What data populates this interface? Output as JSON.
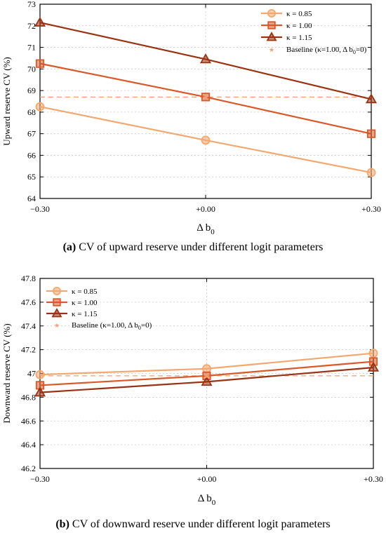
{
  "colors": {
    "k085": "#f2a86f",
    "k100": "#d9592a",
    "k115": "#9a3214",
    "baseline": "#f2a070",
    "grid": "#c8c8c8"
  },
  "chart_data": [
    {
      "type": "line",
      "caption_label": "(a)",
      "caption_text": "CV of upward reserve under different logit parameters",
      "xlabel": "Δ b",
      "xlabel_sub": "0",
      "ylabel": "Upward reserve CV (%)",
      "categories": [
        "−0.30",
        "+0.00",
        "+0.30"
      ],
      "x": [
        -0.3,
        0.0,
        0.3
      ],
      "xlim": [
        -0.3,
        0.3
      ],
      "ylim": [
        64,
        73
      ],
      "yticks": [
        64,
        65,
        66,
        67,
        68,
        69,
        70,
        71,
        72,
        73
      ],
      "ytick_labels": [
        "64",
        "65",
        "66",
        "67",
        "68",
        "69",
        "70",
        "71",
        "72",
        "73"
      ],
      "grid": true,
      "legend_position": "top-right",
      "series": [
        {
          "name": "κ = 0.85",
          "marker": "circle",
          "color_key": "k085",
          "values": [
            68.25,
            66.7,
            65.2
          ]
        },
        {
          "name": "κ = 1.00",
          "marker": "square",
          "color_key": "k100",
          "values": [
            70.25,
            68.7,
            67.0
          ]
        },
        {
          "name": "κ = 1.15",
          "marker": "triangle",
          "color_key": "k115",
          "values": [
            72.15,
            70.45,
            68.6
          ]
        }
      ],
      "baseline": {
        "name": "Baseline (κ=1.00, Δ b",
        "name_sub": "0",
        "name_tail": "=0)",
        "x": 0.0,
        "value": 68.7
      }
    },
    {
      "type": "line",
      "caption_label": "(b)",
      "caption_text": "CV of downward reserve under different logit parameters",
      "xlabel": "Δ b",
      "xlabel_sub": "0",
      "ylabel": "Downward reserve CV (%)",
      "categories": [
        "−0.30",
        "+0.00",
        "+0.30"
      ],
      "x": [
        -0.3,
        0.0,
        0.3
      ],
      "xlim": [
        -0.3,
        0.3
      ],
      "ylim": [
        46.2,
        47.8
      ],
      "yticks": [
        46.2,
        46.4,
        46.6,
        46.8,
        47.0,
        47.2,
        47.4,
        47.6,
        47.8
      ],
      "ytick_labels": [
        "46.2",
        "46.4",
        "46.6",
        "46.8",
        "47",
        "47.2",
        "47.4",
        "47.6",
        "47.8"
      ],
      "grid": true,
      "legend_position": "top-left",
      "series": [
        {
          "name": "κ = 0.85",
          "marker": "circle",
          "color_key": "k085",
          "values": [
            46.99,
            47.04,
            47.17
          ]
        },
        {
          "name": "κ = 1.00",
          "marker": "square",
          "color_key": "k100",
          "values": [
            46.9,
            46.98,
            47.1
          ]
        },
        {
          "name": "κ = 1.15",
          "marker": "triangle",
          "color_key": "k115",
          "values": [
            46.84,
            46.93,
            47.05
          ]
        }
      ],
      "baseline": {
        "name": "Baseline (κ=1.00, Δ b",
        "name_sub": "0",
        "name_tail": "=0)",
        "x": 0.0,
        "value": 46.98
      }
    }
  ]
}
